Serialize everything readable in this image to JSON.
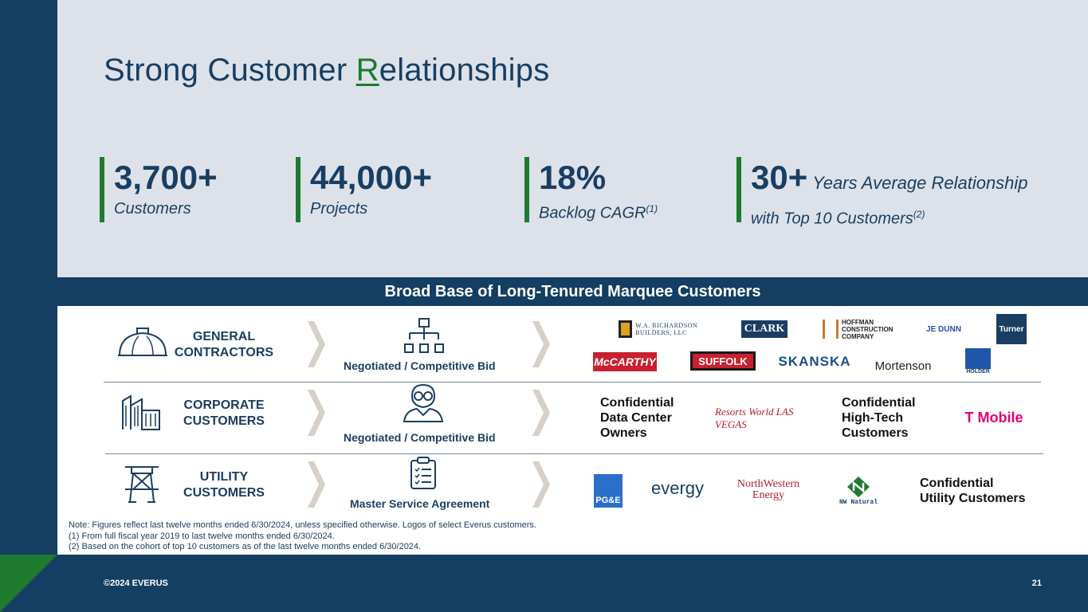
{
  "title": {
    "prefix": "Strong Customer ",
    "accent": "R",
    "suffix": "elationships"
  },
  "stats": [
    {
      "value": "3,700+",
      "label": "Customers"
    },
    {
      "value": "44,000+",
      "label": "Projects"
    },
    {
      "value": "18%",
      "label": "Backlog CAGR",
      "footnote": "(1)"
    },
    {
      "value": "30+",
      "inline_label": "Years Average Relationship",
      "label": "with Top 10 Customers",
      "footnote": "(2)"
    }
  ],
  "band_title": "Broad Base of Long-Tenured Marquee Customers",
  "rows": [
    {
      "category": "GENERAL CONTRACTORS",
      "method": "Negotiated / Competitive Bid",
      "logos": [
        "W.A. RICHARDSON BUILDERS, LLC",
        "CLARK",
        "HOFFMAN CONSTRUCTION COMPANY",
        "JE DUNN",
        "Turner",
        "McCARTHY",
        "SUFFOLK",
        "SKANSKA",
        "Mortenson",
        "HOLDER"
      ]
    },
    {
      "category": "CORPORATE CUSTOMERS",
      "method": "Negotiated / Competitive Bid",
      "confidential_1": "Confidential Data Center Owners",
      "logos": [
        "Resorts World LAS VEGAS",
        "T Mobile"
      ],
      "confidential_2": "Confidential High-Tech Customers"
    },
    {
      "category": "UTILITY CUSTOMERS",
      "method": "Master Service Agreement",
      "logos": [
        "PG&E",
        "evergy",
        "NorthWestern Energy",
        "NW Natural"
      ],
      "confidential_1": "Confidential Utility Customers"
    }
  ],
  "notes": [
    "Note: Figures reflect last twelve months ended 6/30/2024, unless specified otherwise. Logos of select Everus customers.",
    "(1)  From full fiscal year 2019 to last twelve months ended 6/30/2024.",
    "(2)  Based on the cohort of top 10 customers as of the last twelve months ended 6/30/2024."
  ],
  "footer": {
    "copyright": "©2024 EVERUS",
    "page": "21"
  },
  "colors": {
    "navy": "#143e62",
    "green": "#1e7a2e",
    "panel": "#dde2ea",
    "chevron": "#d6d0c8"
  }
}
